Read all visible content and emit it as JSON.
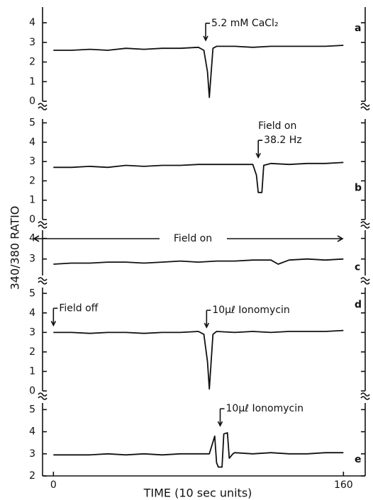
{
  "chart_data": [
    {
      "type": "line",
      "label": "a",
      "ylim": [
        0,
        4.8
      ],
      "yticks": [
        0,
        1,
        2,
        3,
        4
      ],
      "x": [
        0,
        10,
        20,
        30,
        40,
        50,
        60,
        70,
        80,
        83,
        85,
        86,
        88,
        90,
        100,
        110,
        120,
        130,
        140,
        150,
        160
      ],
      "values": [
        2.6,
        2.6,
        2.65,
        2.6,
        2.7,
        2.65,
        2.7,
        2.7,
        2.75,
        2.6,
        1.5,
        0.2,
        2.7,
        2.8,
        2.8,
        2.75,
        2.8,
        2.8,
        2.8,
        2.8,
        2.85
      ],
      "annotations": [
        {
          "x": 84,
          "text": [
            "5.2 mM CaCl₂"
          ]
        }
      ]
    },
    {
      "type": "line",
      "label": "b",
      "ylim": [
        0,
        5.2
      ],
      "yticks": [
        0,
        1,
        2,
        3,
        4,
        5
      ],
      "x": [
        0,
        10,
        20,
        30,
        40,
        50,
        60,
        70,
        80,
        90,
        100,
        110,
        112,
        113,
        115,
        116,
        120,
        130,
        140,
        150,
        160
      ],
      "values": [
        2.7,
        2.7,
        2.75,
        2.7,
        2.8,
        2.75,
        2.8,
        2.8,
        2.85,
        2.85,
        2.85,
        2.85,
        2.3,
        1.4,
        1.4,
        2.8,
        2.9,
        2.85,
        2.9,
        2.9,
        2.95
      ],
      "annotations": [
        {
          "x": 113,
          "text": [
            "Field on",
            "38.2 Hz"
          ]
        }
      ]
    },
    {
      "type": "line",
      "label": "c",
      "ylim": [
        2.2,
        4.4
      ],
      "yticks": [
        3,
        4
      ],
      "ylabel": "340/380 RATIO",
      "x": [
        0,
        10,
        20,
        30,
        40,
        50,
        60,
        70,
        80,
        90,
        100,
        110,
        120,
        124,
        130,
        140,
        150,
        160
      ],
      "values": [
        2.75,
        2.8,
        2.8,
        2.85,
        2.85,
        2.8,
        2.85,
        2.9,
        2.85,
        2.9,
        2.9,
        2.95,
        2.95,
        2.75,
        2.95,
        3.0,
        2.95,
        3.0
      ],
      "span_annotation": "Field on"
    },
    {
      "type": "line",
      "label": "d",
      "ylim": [
        0,
        5.3
      ],
      "yticks": [
        0,
        1,
        2,
        3,
        4,
        5
      ],
      "x": [
        0,
        10,
        20,
        30,
        40,
        50,
        60,
        70,
        80,
        83,
        85,
        86,
        88,
        90,
        100,
        110,
        120,
        130,
        140,
        150,
        160
      ],
      "values": [
        3.0,
        3.0,
        2.95,
        3.0,
        3.0,
        2.95,
        3.0,
        3.0,
        3.05,
        2.9,
        1.5,
        0.1,
        2.9,
        3.05,
        3.0,
        3.05,
        3.0,
        3.05,
        3.05,
        3.05,
        3.1
      ],
      "annotations": [
        {
          "x": 0,
          "text": [
            "Field off"
          ]
        },
        {
          "x": 84.5,
          "text": [
            "10μℓ Ionomycin"
          ]
        }
      ]
    },
    {
      "type": "line",
      "label": "e",
      "ylim": [
        2,
        5.3
      ],
      "yticks": [
        2,
        3,
        4,
        5
      ],
      "xlim": [
        -6,
        172
      ],
      "xticks": [
        0,
        160
      ],
      "xlabel": "TIME (10 sec units)",
      "x": [
        0,
        10,
        20,
        30,
        40,
        50,
        60,
        70,
        80,
        86,
        89,
        90,
        91,
        93,
        94,
        96,
        97,
        99,
        100,
        110,
        120,
        130,
        140,
        150,
        160
      ],
      "values": [
        2.95,
        2.95,
        2.95,
        3.0,
        2.95,
        3.0,
        2.95,
        3.0,
        3.0,
        3.0,
        3.8,
        2.6,
        2.4,
        2.4,
        3.9,
        3.95,
        2.8,
        3.0,
        3.05,
        3.0,
        3.05,
        3.0,
        3.0,
        3.05,
        3.05
      ],
      "annotations": [
        {
          "x": 92,
          "text": [
            "10μℓ Ionomycin"
          ]
        }
      ]
    }
  ]
}
